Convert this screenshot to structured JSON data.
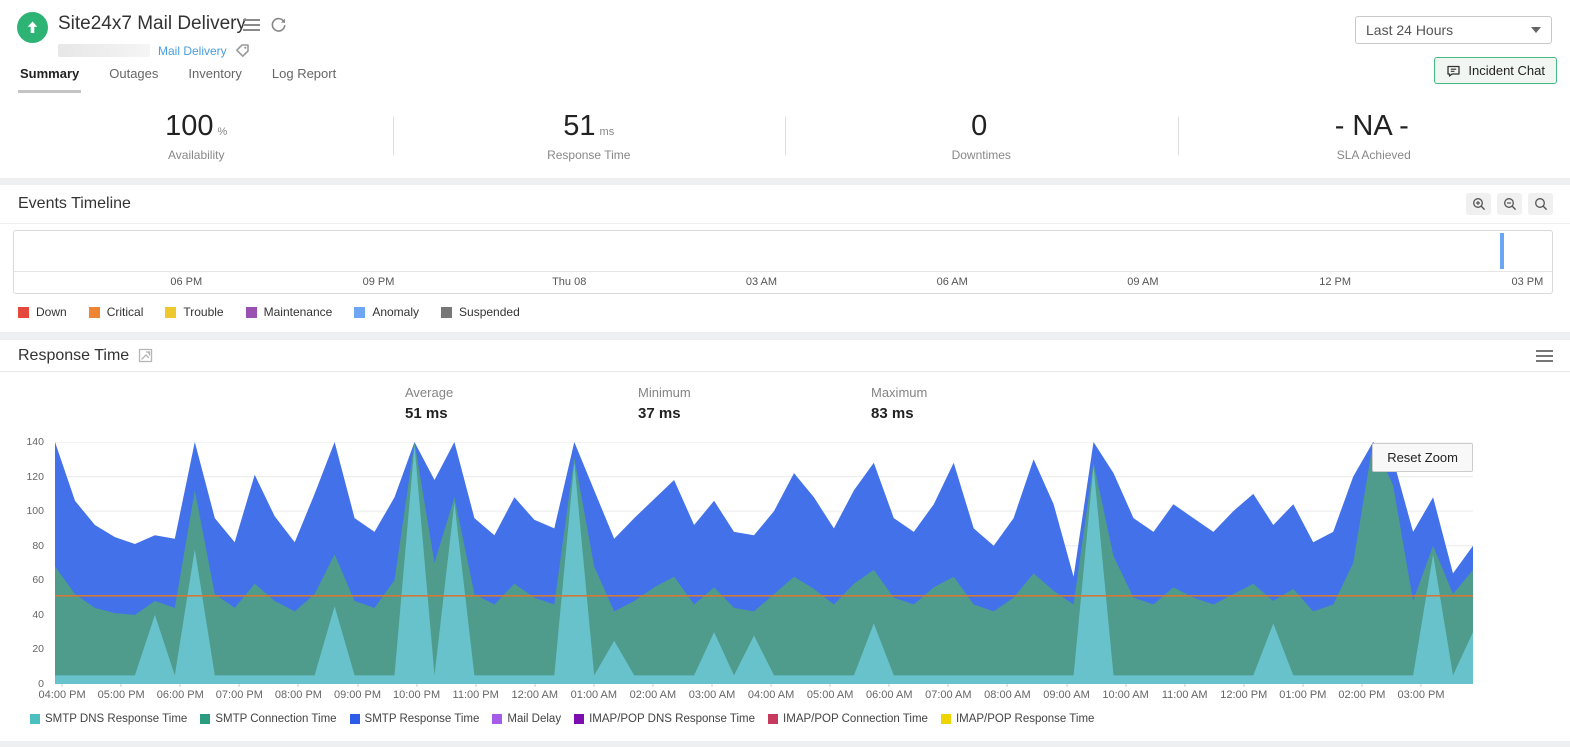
{
  "header": {
    "title": "Site24x7 Mail Delivery",
    "monitor_type_link": "Mail Delivery",
    "time_range_value": "Last 24 Hours",
    "incident_chat_label": "Incident Chat",
    "tabs": [
      {
        "label": "Summary",
        "active": true
      },
      {
        "label": "Outages",
        "active": false
      },
      {
        "label": "Inventory",
        "active": false
      },
      {
        "label": "Log Report",
        "active": false
      }
    ]
  },
  "stats": [
    {
      "value": "100",
      "unit": "%",
      "label": "Availability"
    },
    {
      "value": "51",
      "unit": "ms",
      "label": "Response Time"
    },
    {
      "value": "0",
      "unit": "",
      "label": "Downtimes"
    },
    {
      "value": "- NA -",
      "unit": "",
      "label": "SLA Achieved"
    }
  ],
  "chart_data": [
    {
      "type": "area",
      "title": "Response Time",
      "summary": {
        "average_label": "Average",
        "average_value": "51 ms",
        "minimum_label": "Minimum",
        "minimum_value": "37 ms",
        "maximum_label": "Maximum",
        "maximum_value": "83 ms"
      },
      "ylim": [
        0,
        140
      ],
      "yticks": [
        0,
        20,
        40,
        60,
        80,
        100,
        120,
        140
      ],
      "x_labels": [
        "04:00 PM",
        "05:00 PM",
        "06:00 PM",
        "07:00 PM",
        "08:00 PM",
        "09:00 PM",
        "10:00 PM",
        "11:00 PM",
        "12:00 AM",
        "01:00 AM",
        "02:00 AM",
        "03:00 AM",
        "04:00 AM",
        "05:00 AM",
        "06:00 AM",
        "07:00 AM",
        "08:00 AM",
        "09:00 AM",
        "10:00 AM",
        "11:00 AM",
        "12:00 PM",
        "01:00 PM",
        "02:00 PM",
        "03:00 PM"
      ],
      "series": [
        {
          "name": "SMTP Response Time",
          "color": "#4271ea",
          "values": [
            140,
            106,
            92,
            85,
            81,
            86,
            84,
            140,
            96,
            82,
            121,
            97,
            82,
            110,
            140,
            96,
            88,
            108,
            140,
            118,
            140,
            96,
            86,
            108,
            95,
            90,
            140,
            112,
            84,
            96,
            107,
            118,
            92,
            106,
            88,
            86,
            100,
            122,
            108,
            90,
            112,
            128,
            96,
            88,
            104,
            128,
            90,
            80,
            96,
            130,
            104,
            62,
            140,
            122,
            96,
            88,
            104,
            96,
            88,
            100,
            110,
            92,
            104,
            82,
            88,
            120,
            140,
            130,
            88,
            108,
            64,
            80
          ]
        },
        {
          "name": "SMTP Connection Time",
          "color": "#4f9c8c",
          "values": [
            68,
            52,
            44,
            41,
            40,
            48,
            44,
            112,
            52,
            44,
            58,
            48,
            42,
            52,
            75,
            48,
            44,
            60,
            140,
            70,
            108,
            52,
            46,
            58,
            50,
            46,
            131,
            68,
            42,
            48,
            56,
            62,
            46,
            56,
            44,
            42,
            52,
            62,
            55,
            46,
            58,
            66,
            50,
            46,
            56,
            62,
            46,
            42,
            50,
            64,
            54,
            46,
            128,
            74,
            50,
            46,
            56,
            50,
            46,
            52,
            58,
            48,
            55,
            42,
            46,
            70,
            140,
            115,
            48,
            80,
            52,
            66
          ]
        },
        {
          "name": "SMTP DNS Response Time",
          "color": "#68c2cc",
          "values": [
            5,
            5,
            5,
            5,
            5,
            40,
            5,
            78,
            5,
            5,
            5,
            5,
            5,
            5,
            45,
            5,
            5,
            5,
            138,
            5,
            105,
            5,
            5,
            5,
            5,
            5,
            128,
            5,
            25,
            5,
            5,
            5,
            5,
            30,
            5,
            28,
            5,
            5,
            5,
            5,
            5,
            35,
            5,
            5,
            5,
            5,
            5,
            5,
            5,
            5,
            5,
            5,
            126,
            5,
            5,
            5,
            5,
            5,
            5,
            5,
            5,
            35,
            5,
            5,
            5,
            5,
            5,
            5,
            5,
            75,
            5,
            30
          ]
        }
      ],
      "average_line": {
        "value": 51,
        "color": "#cf7a3a"
      },
      "legend": [
        {
          "label": "SMTP DNS Response Time",
          "color": "#4dbfc0"
        },
        {
          "label": "SMTP Connection Time",
          "color": "#2b9c7f"
        },
        {
          "label": "SMTP Response Time",
          "color": "#2d5ce6"
        },
        {
          "label": "Mail Delay",
          "color": "#a55ce8"
        },
        {
          "label": "IMAP/POP DNS Response Time",
          "color": "#7c0eb0"
        },
        {
          "label": "IMAP/POP Connection Time",
          "color": "#c73a5f"
        },
        {
          "label": "IMAP/POP Response Time",
          "color": "#efd500"
        }
      ],
      "reset_zoom_label": "Reset Zoom"
    },
    {
      "type": "timeline",
      "title": "Events Timeline",
      "x_labels": [
        {
          "text": "06 PM",
          "pct": 11.2
        },
        {
          "text": "09 PM",
          "pct": 23.7
        },
        {
          "text": "Thu 08",
          "pct": 36.1
        },
        {
          "text": "03 AM",
          "pct": 48.6
        },
        {
          "text": "06 AM",
          "pct": 61.0
        },
        {
          "text": "09 AM",
          "pct": 73.4
        },
        {
          "text": "12 PM",
          "pct": 85.9
        },
        {
          "text": "03 PM",
          "pct": 98.4
        }
      ],
      "marker": {
        "color": "#6aa6f4",
        "pct": 96.6
      },
      "legend": [
        {
          "label": "Down",
          "color": "#e5483c"
        },
        {
          "label": "Critical",
          "color": "#ef8532"
        },
        {
          "label": "Trouble",
          "color": "#efc72e"
        },
        {
          "label": "Maintenance",
          "color": "#9851b0"
        },
        {
          "label": "Anomaly",
          "color": "#6fa5f2"
        },
        {
          "label": "Suspended",
          "color": "#777777"
        }
      ]
    }
  ]
}
